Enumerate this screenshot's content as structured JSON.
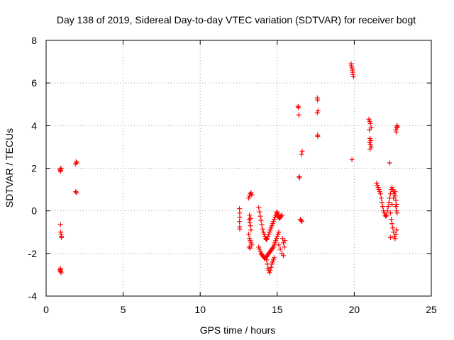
{
  "chart_data": {
    "type": "scatter",
    "title": "Day 138 of 2019, Sidereal Day-to-day VTEC variation (SDTVAR) for receiver bogt",
    "xlabel": "GPS time / hours",
    "ylabel": "SDTVAR / TECUs",
    "xlim": [
      0,
      25
    ],
    "ylim": [
      -4,
      8
    ],
    "xticks": [
      0,
      5,
      10,
      15,
      20,
      25
    ],
    "xtick_labels": [
      "0",
      "5",
      "10",
      "15",
      "20",
      "25"
    ],
    "yticks": [
      -4,
      -2,
      0,
      2,
      4,
      6,
      8
    ],
    "ytick_labels": [
      "-4",
      "-2",
      "0",
      "2",
      "4",
      "6",
      "8"
    ],
    "grid": true,
    "marker": "+",
    "color": "#ff0000",
    "series": [
      {
        "name": "SDTVAR",
        "x": [
          0.9,
          0.92,
          0.95,
          0.97,
          0.93,
          0.95,
          0.97,
          0.99,
          1.0,
          0.92,
          0.95,
          0.97,
          0.9,
          0.93,
          1.9,
          1.95,
          2.0,
          1.92,
          1.96,
          12.55,
          12.56,
          12.57,
          12.55,
          12.56,
          12.57,
          13.15,
          13.2,
          13.25,
          13.3,
          13.35,
          13.18,
          13.22,
          13.26,
          13.3,
          13.15,
          13.2,
          13.25,
          13.3,
          13.35,
          13.18,
          13.24,
          13.2,
          13.28,
          13.8,
          13.85,
          13.9,
          13.95,
          14.0,
          14.05,
          14.1,
          14.15,
          14.2,
          14.25,
          14.3,
          14.35,
          14.4,
          14.45,
          14.5,
          14.55,
          14.6,
          14.65,
          14.7,
          14.75,
          14.8,
          14.85,
          14.9,
          14.95,
          15.0,
          15.05,
          13.8,
          13.85,
          13.9,
          13.95,
          14.0,
          14.05,
          14.1,
          14.15,
          14.2,
          14.25,
          14.3,
          14.35,
          14.4,
          14.45,
          14.5,
          14.55,
          14.6,
          14.65,
          14.7,
          14.75,
          14.8,
          14.85,
          14.9,
          14.95,
          15.0,
          15.05,
          15.1,
          14.3,
          14.35,
          14.4,
          14.45,
          14.5,
          14.55,
          14.6,
          14.65,
          14.7,
          14.75,
          14.8,
          15.0,
          15.05,
          15.1,
          15.15,
          15.2,
          15.25,
          15.3,
          15.35,
          15.4,
          15.45,
          15.5,
          15.1,
          15.2,
          15.3,
          15.4,
          16.35,
          16.38,
          16.42,
          16.45,
          16.5,
          16.55,
          16.6,
          16.62,
          16.58,
          16.4,
          17.6,
          17.62,
          17.65,
          17.6,
          17.63,
          17.62,
          19.8,
          19.82,
          19.85,
          19.88,
          19.9,
          19.92,
          19.95,
          19.85,
          20.95,
          21.0,
          21.05,
          21.1,
          20.98,
          21.02,
          21.08,
          21.0,
          21.05,
          21.1,
          21.02,
          21.45,
          21.5,
          21.55,
          21.6,
          21.65,
          21.7,
          21.75,
          21.8,
          21.85,
          21.9,
          21.95,
          22.0,
          22.05,
          22.1,
          22.15,
          22.2,
          22.25,
          22.3,
          22.35,
          22.4,
          22.45,
          22.5,
          22.55,
          22.6,
          22.65,
          22.7,
          22.75,
          22.4,
          22.45,
          22.5,
          22.55,
          22.6,
          22.65,
          22.7,
          22.75,
          22.3,
          22.35,
          22.45,
          22.55,
          22.65,
          22.7,
          22.72,
          22.75,
          22.78,
          22.8,
          22.35,
          22.7,
          22.75,
          22.78
        ],
        "y": [
          1.95,
          1.85,
          1.9,
          2.0,
          -0.65,
          -1.0,
          -1.1,
          -1.2,
          -1.25,
          -2.7,
          -2.85,
          -2.9,
          -2.8,
          -2.75,
          2.2,
          2.3,
          2.25,
          0.9,
          0.85,
          0.1,
          -0.1,
          -0.3,
          -0.5,
          -0.75,
          -0.85,
          0.6,
          0.7,
          0.8,
          0.85,
          0.75,
          -0.4,
          -0.55,
          -0.7,
          -0.9,
          -1.1,
          -1.3,
          -1.4,
          -1.5,
          -1.6,
          -1.7,
          -1.75,
          -0.2,
          -0.35,
          0.15,
          -0.05,
          -0.25,
          -0.45,
          -0.65,
          -0.85,
          -1.0,
          -1.1,
          -1.2,
          -1.3,
          -1.35,
          -1.3,
          -1.2,
          -1.1,
          -1.0,
          -0.9,
          -0.8,
          -0.7,
          -0.6,
          -0.5,
          -0.4,
          -0.3,
          -0.2,
          -0.1,
          -0.05,
          -0.15,
          -1.7,
          -1.8,
          -1.9,
          -2.0,
          -2.05,
          -2.1,
          -2.15,
          -2.2,
          -2.25,
          -2.2,
          -2.15,
          -2.1,
          -2.05,
          -2.0,
          -1.95,
          -1.9,
          -1.85,
          -1.8,
          -1.75,
          -1.7,
          -1.6,
          -1.5,
          -1.4,
          -1.3,
          -1.2,
          -1.1,
          -1.0,
          -2.3,
          -2.5,
          -2.7,
          -2.8,
          -2.9,
          -2.8,
          -2.65,
          -2.5,
          -2.4,
          -2.3,
          -2.2,
          -0.2,
          -0.25,
          -0.3,
          -0.35,
          -0.3,
          -0.25,
          -0.2,
          -1.3,
          -1.5,
          -1.7,
          -1.4,
          -1.6,
          -1.8,
          -2.0,
          -2.1,
          4.9,
          4.85,
          1.6,
          1.55,
          -0.4,
          -0.45,
          -0.5,
          2.8,
          2.65,
          4.5,
          5.3,
          5.2,
          4.7,
          4.6,
          3.5,
          3.55,
          6.9,
          6.8,
          6.7,
          6.6,
          6.5,
          6.4,
          6.3,
          2.4,
          4.3,
          4.2,
          4.1,
          3.9,
          3.8,
          3.4,
          3.3,
          3.2,
          3.1,
          3.0,
          2.9,
          1.3,
          1.2,
          1.1,
          1.0,
          0.9,
          0.8,
          0.6,
          0.4,
          0.2,
          0.0,
          -0.1,
          -0.2,
          -0.25,
          -0.2,
          0.0,
          0.2,
          0.4,
          0.6,
          0.8,
          1.0,
          1.1,
          1.0,
          0.9,
          0.8,
          0.7,
          0.5,
          0.3,
          -0.4,
          -0.6,
          -0.8,
          -1.0,
          -1.2,
          -1.3,
          -1.1,
          -0.9,
          2.25,
          -0.1,
          0.3,
          0.6,
          0.9,
          3.8,
          3.7,
          3.9,
          4.0,
          3.95,
          -1.25,
          0.2,
          0.0,
          -0.1
        ]
      }
    ]
  }
}
